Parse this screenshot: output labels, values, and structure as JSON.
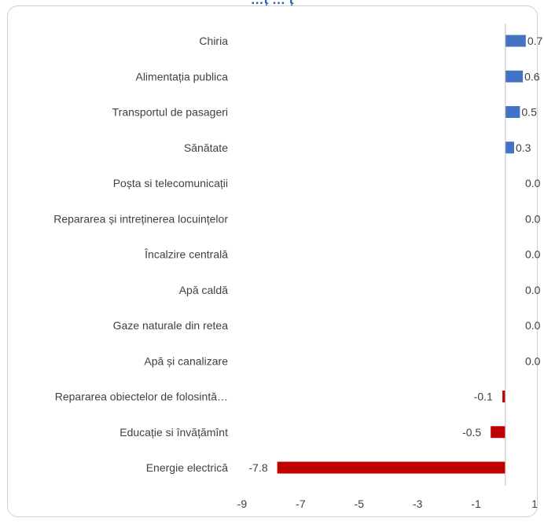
{
  "top_title": "…ț … ț",
  "colors": {
    "positive": "#4472c4",
    "negative": "#c00000",
    "axis": "#bfbfbf",
    "text": "#404040"
  },
  "chart_data": {
    "type": "bar",
    "orientation": "horizontal",
    "title": "",
    "xlabel": "",
    "ylabel": "",
    "xlim": [
      -9,
      1
    ],
    "xticks": [
      "-9",
      "-7",
      "-5",
      "-3",
      "-1",
      "1"
    ],
    "grid": false,
    "legend": "none",
    "categories": [
      "Chiria",
      "Alimentația publica",
      "Transportul de pasageri",
      "Sănătate",
      "Poșta si telecomunicații",
      "Repararea și intreținerea locuințelor",
      "Încalzire centrală",
      "Apă caldă",
      "Gaze naturale din retea",
      "Apă și canalizare",
      "Repararea obiectelor de folosintă…",
      "Educație si învățămînt",
      "Energie electrică"
    ],
    "values": [
      0.7,
      0.6,
      0.5,
      0.3,
      0.0,
      0.0,
      0.0,
      0.0,
      0.0,
      0.0,
      -0.1,
      -0.5,
      -7.8
    ],
    "value_labels": [
      "0.7",
      "0.6",
      "0.5",
      "0.3",
      "0.0",
      "0.0",
      "0.0",
      "0.0",
      "0.0",
      "0.0",
      "-0.1",
      "-0.5",
      "-7.8"
    ]
  }
}
